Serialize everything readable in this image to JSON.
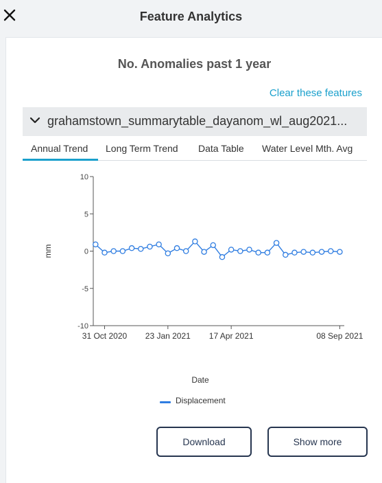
{
  "header": {
    "title": "Feature Analytics",
    "close_icon": "close-icon"
  },
  "panel": {
    "title": "No. Anomalies past 1 year",
    "clear_link": "Clear these features",
    "dataset_name": "grahamstown_summarytable_dayanom_wl_aug2021...",
    "tabs": [
      "Annual Trend",
      "Long Term Trend",
      "Data Table",
      "Water Level Mth. Avg"
    ],
    "active_tab": "Annual Trend"
  },
  "colors": {
    "accent": "#1aa0cc",
    "series": "#2f7de1",
    "button": "#26354f"
  },
  "chart_data": {
    "type": "line",
    "xlabel": "Date",
    "ylabel": "mm",
    "ylim": [
      -10,
      10
    ],
    "yticks": [
      "10",
      "5",
      "0",
      "-5",
      "-10"
    ],
    "xlim": [
      "2020-10-16",
      "2021-09-14"
    ],
    "xticks": [
      {
        "date": "2020-10-31",
        "label": "31 Oct 2020"
      },
      {
        "date": "2021-01-23",
        "label": "23 Jan 2021"
      },
      {
        "date": "2021-04-17",
        "label": "17 Apr 2021"
      },
      {
        "date": "2021-09-08",
        "label": "08 Sep 2021"
      }
    ],
    "series": [
      {
        "name": "Displacement",
        "color": "#2f7de1",
        "x": [
          "2020-10-19",
          "2020-10-31",
          "2020-11-12",
          "2020-11-24",
          "2020-12-06",
          "2020-12-18",
          "2020-12-30",
          "2021-01-11",
          "2021-01-23",
          "2021-02-04",
          "2021-02-16",
          "2021-02-28",
          "2021-03-12",
          "2021-03-24",
          "2021-04-05",
          "2021-04-17",
          "2021-04-29",
          "2021-05-11",
          "2021-05-23",
          "2021-06-04",
          "2021-06-16",
          "2021-06-28",
          "2021-07-10",
          "2021-07-22",
          "2021-08-03",
          "2021-08-15",
          "2021-08-27",
          "2021-09-08"
        ],
        "y": [
          0.9,
          -0.2,
          0.0,
          0.0,
          0.4,
          0.3,
          0.6,
          0.9,
          -0.3,
          0.4,
          0.0,
          1.3,
          -0.1,
          0.8,
          -0.8,
          0.2,
          0.0,
          0.2,
          -0.2,
          -0.2,
          1.1,
          -0.5,
          -0.2,
          -0.1,
          -0.2,
          -0.1,
          0.0,
          -0.1
        ]
      }
    ],
    "legend": "bottom-center"
  },
  "actions": {
    "download": "Download",
    "show_more": "Show more"
  }
}
